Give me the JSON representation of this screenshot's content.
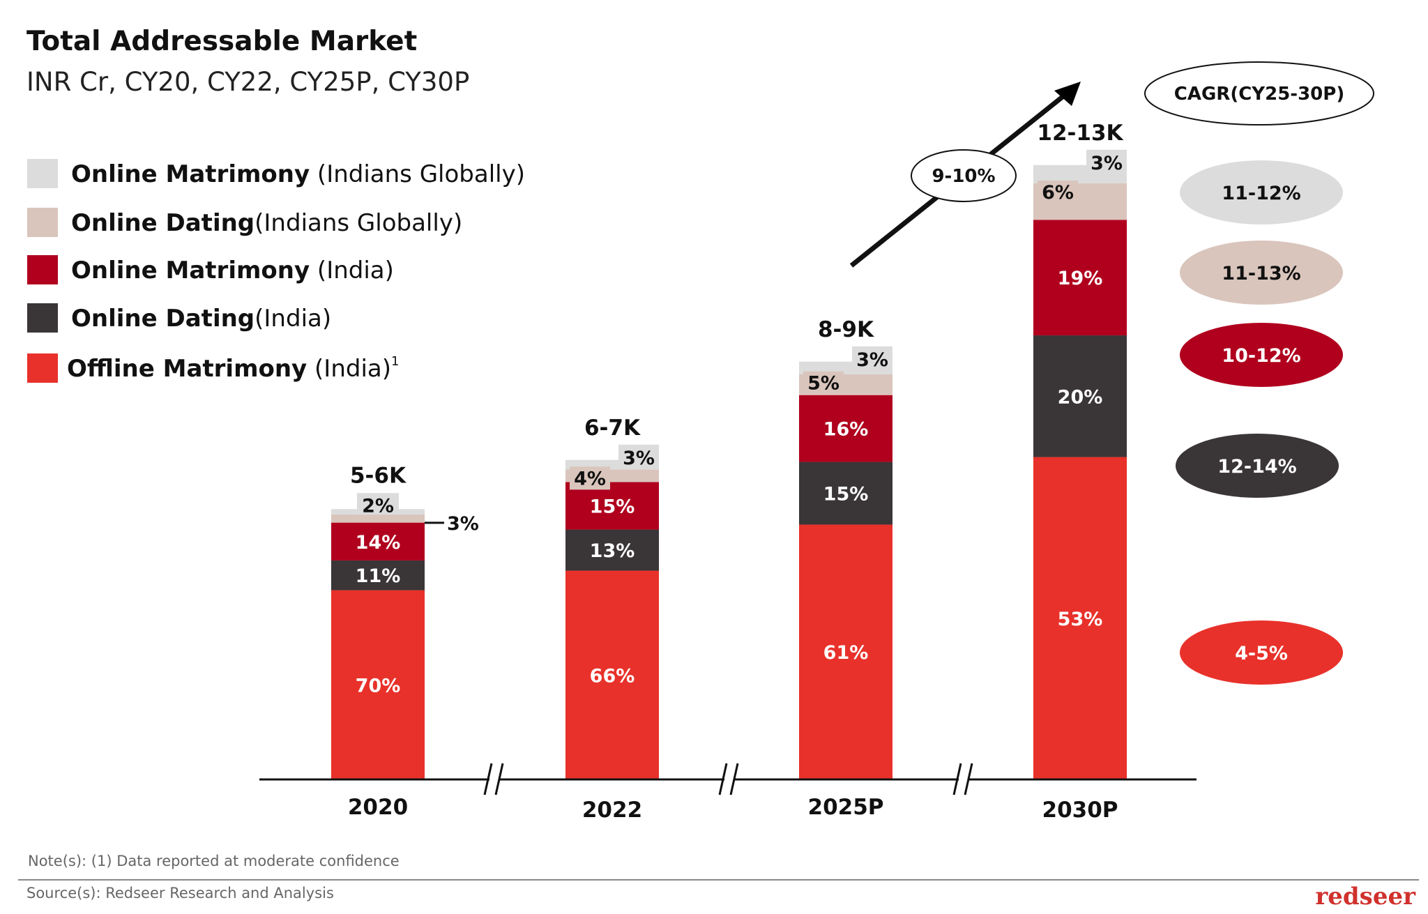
{
  "title": "Total Addressable Market",
  "subtitle": "INR Cr, CY20, CY22, CY25P, CY30P",
  "legend": [
    {
      "bold": "Online Matrimony",
      "rest": " (Indians Globally)",
      "sup": "",
      "color": "#dcdcdc"
    },
    {
      "bold": "Online Dating",
      "rest": "(Indians Globally)",
      "sup": "",
      "color": "#d9c5bc"
    },
    {
      "bold": "Online Matrimony",
      "rest": " (India)",
      "sup": "",
      "color": "#b0001e"
    },
    {
      "bold": "Online Dating",
      "rest": "(India)",
      "sup": "",
      "color": "#3a3536"
    },
    {
      "bold": "Offline Matrimony",
      "rest": " (India)",
      "sup": "1",
      "color": "#e8312a"
    }
  ],
  "chart_data": {
    "type": "bar",
    "stacked": true,
    "unit": "%",
    "categories": [
      "2020",
      "2022",
      "2025P",
      "2030P"
    ],
    "totals": [
      "5-6K",
      "6-7K",
      "8-9K",
      "12-13K"
    ],
    "total_midpoints_k": [
      5.5,
      6.5,
      8.5,
      12.5
    ],
    "series": [
      {
        "name": "Offline Matrimony (India)",
        "color": "#e8312a",
        "values": [
          70,
          66,
          61,
          53
        ],
        "cagr": "4-5%"
      },
      {
        "name": "Online Dating (India)",
        "color": "#3a3536",
        "values": [
          11,
          13,
          15,
          20
        ],
        "cagr": "12-14%"
      },
      {
        "name": "Online Matrimony (India)",
        "color": "#b0001e",
        "values": [
          14,
          15,
          16,
          19
        ],
        "cagr": "10-12%"
      },
      {
        "name": "Online Dating (Indians Globally)",
        "color": "#d9c5bc",
        "values": [
          3,
          4,
          5,
          6
        ],
        "cagr": "11-13%"
      },
      {
        "name": "Online Matrimony (Indians Globally)",
        "color": "#dcdcdc",
        "values": [
          2,
          3,
          3,
          3
        ],
        "cagr": "11-12%"
      }
    ],
    "overall_cagr": "9-10%",
    "cagr_title": "CAGR(CY25-30P)",
    "axis_breaks": true
  },
  "note": "Note(s): (1) Data reported at moderate confidence",
  "source": "Source(s): Redseer Research and Analysis",
  "logo": "redseer",
  "colors": {
    "logo": "#d0312d"
  }
}
